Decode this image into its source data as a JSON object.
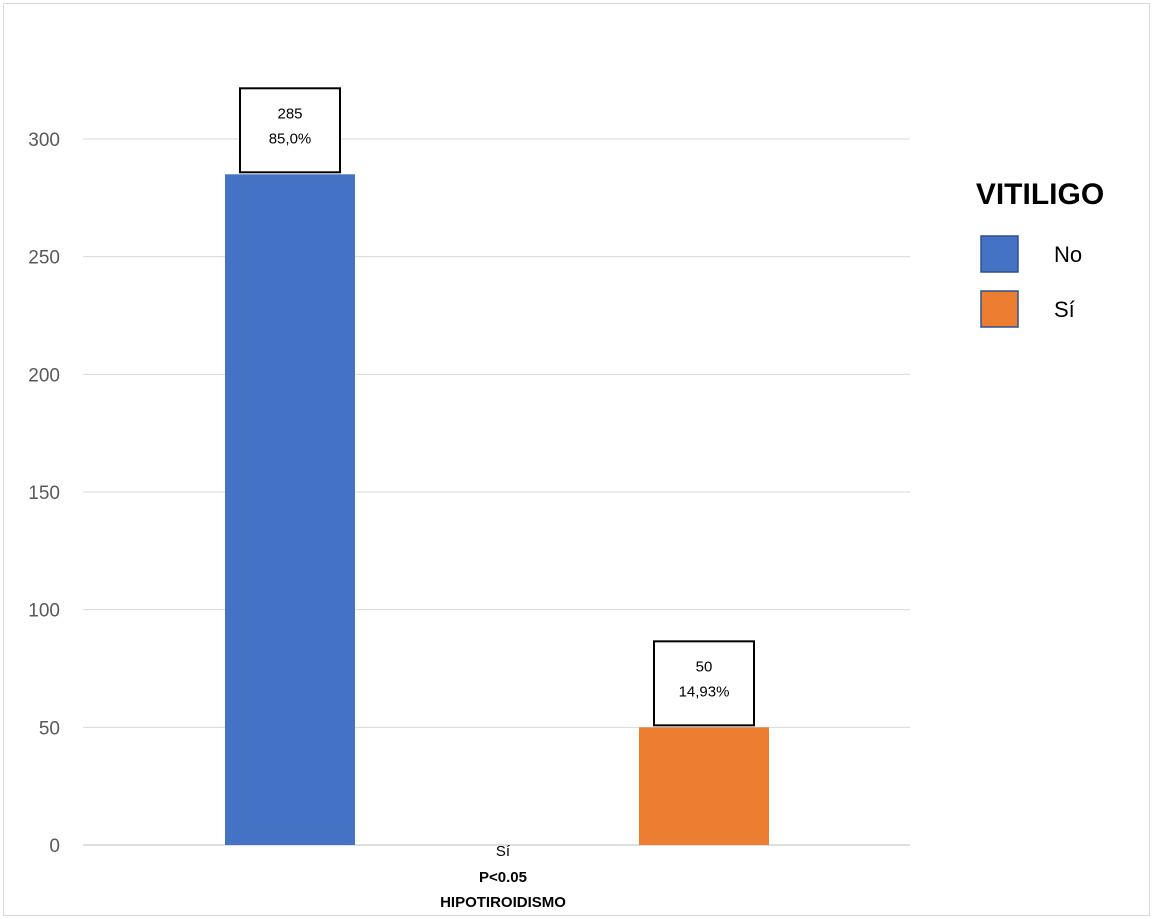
{
  "chart_data": {
    "type": "bar",
    "categories": [
      "Sí"
    ],
    "xlabel": "HIPOTIROIDISMO",
    "annotation": "P<0.05",
    "series": [
      {
        "name": "No",
        "values": [
          285
        ],
        "label_line1": "285",
        "label_line2": "85,0%",
        "color": "#4472C4"
      },
      {
        "name": "Sí",
        "values": [
          50
        ],
        "label_line1": "50",
        "label_line2": "14,93%",
        "color": "#ED7D31"
      }
    ],
    "legend_title": "VITILIGO",
    "legend_position": "right",
    "ylim": [
      0,
      300
    ],
    "yticks": [
      "0",
      "50",
      "100",
      "150",
      "200",
      "250",
      "300"
    ],
    "grid": true
  }
}
